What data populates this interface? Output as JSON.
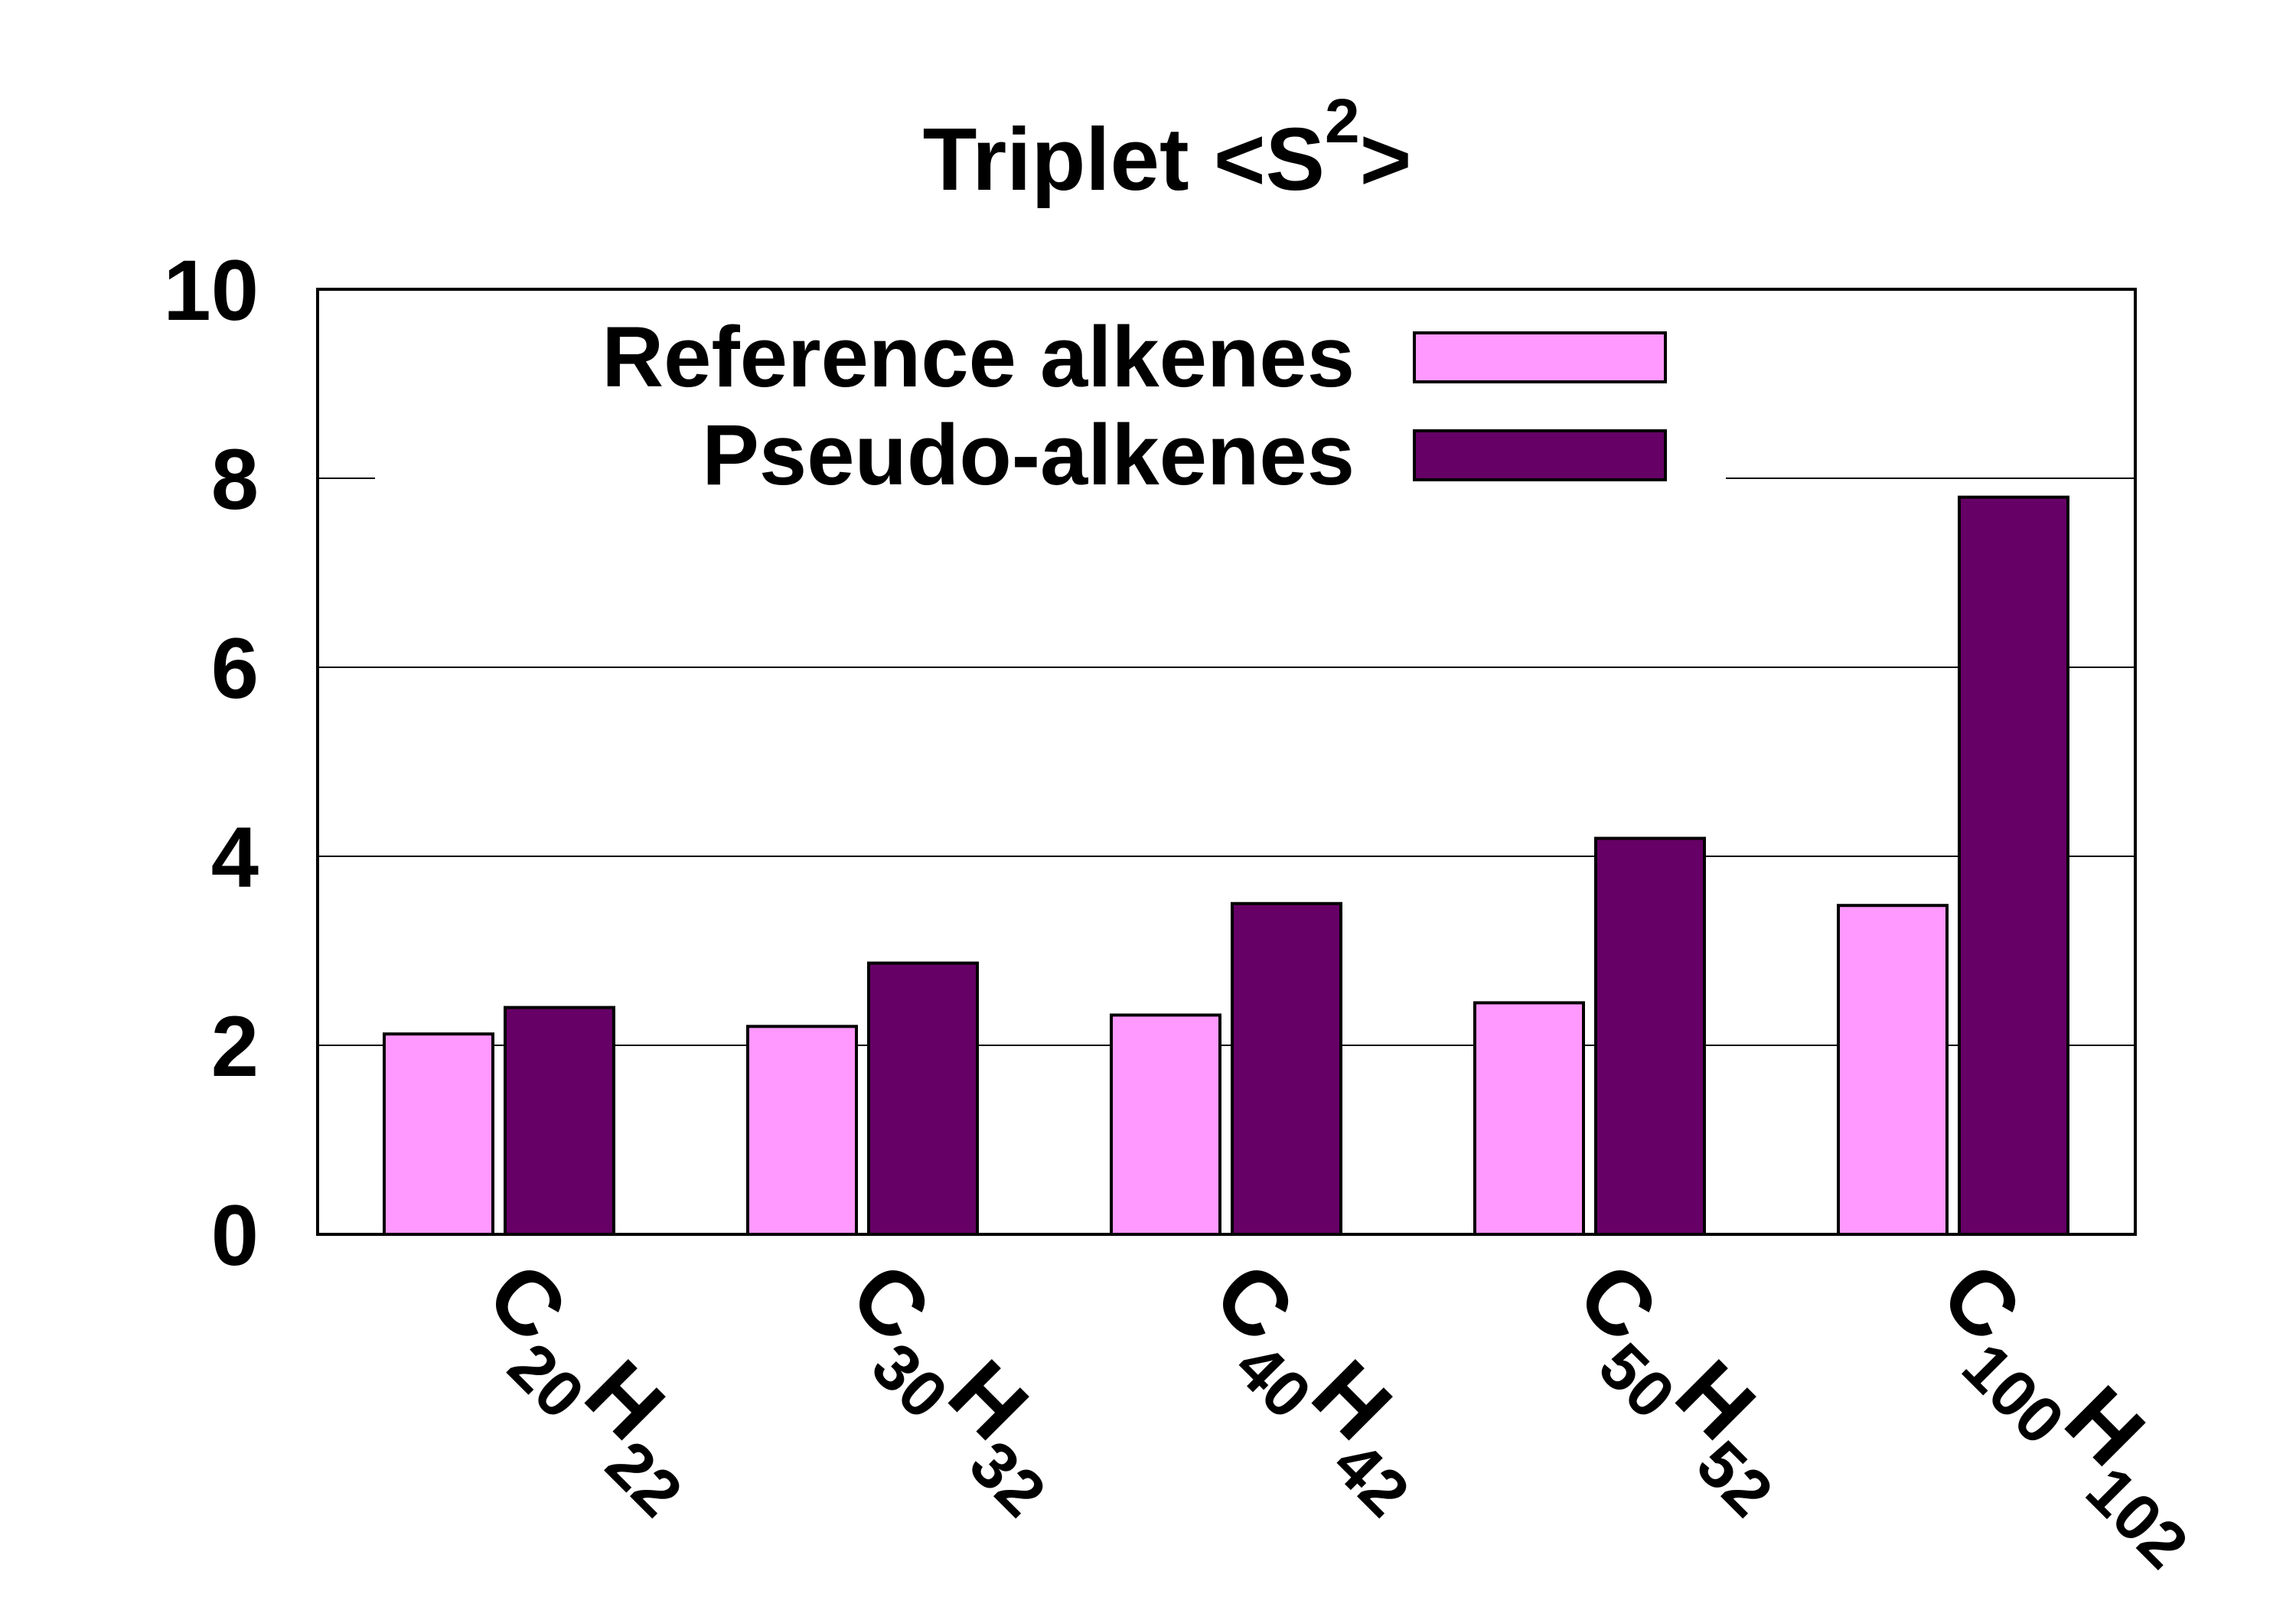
{
  "chart_data": {
    "type": "bar",
    "title": "Triplet <S",
    "title_superscript": "2",
    "title_suffix": ">",
    "xlabel": "",
    "ylabel": "",
    "ylim": [
      0,
      10
    ],
    "yticks": [
      "0",
      "2",
      "4",
      "6",
      "8",
      "10"
    ],
    "grid": true,
    "legend_position": "top-left",
    "categories": [
      {
        "base": "C",
        "sub1": "20",
        "mid": "H",
        "sub2": "22"
      },
      {
        "base": "C",
        "sub1": "30",
        "mid": "H",
        "sub2": "32"
      },
      {
        "base": "C",
        "sub1": "40",
        "mid": "H",
        "sub2": "42"
      },
      {
        "base": "C",
        "sub1": "50",
        "mid": "H",
        "sub2": "52"
      },
      {
        "base": "C",
        "sub1": "100",
        "mid": "H",
        "sub2": "102"
      }
    ],
    "series": [
      {
        "name": "Reference alkenes",
        "color": "#ff99ff",
        "values": [
          2.12,
          2.2,
          2.32,
          2.45,
          3.48
        ]
      },
      {
        "name": "Pseudo-alkenes",
        "color": "#660066",
        "values": [
          2.4,
          2.87,
          3.5,
          4.19,
          7.8
        ]
      }
    ]
  }
}
